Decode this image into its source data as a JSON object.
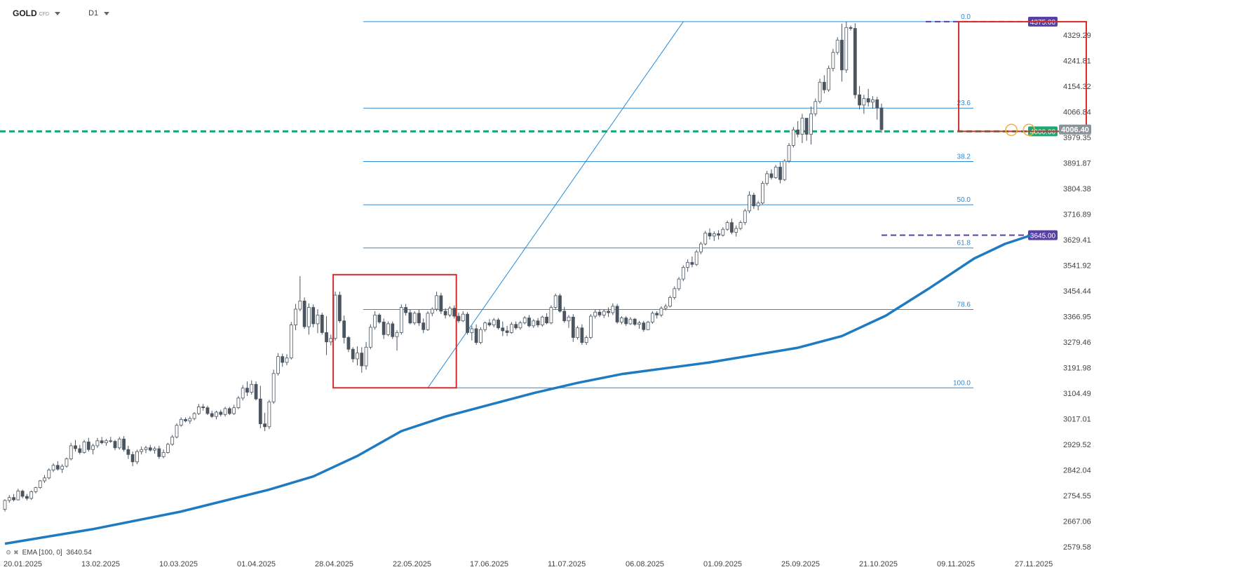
{
  "toolbar": {
    "symbol": "GOLD",
    "symbol_type": "CFD",
    "timeframe": "D1"
  },
  "indicator": {
    "name": "EMA",
    "params": "[100, 0]",
    "value": "3640.54"
  },
  "colors": {
    "up_candle": "#ffffff",
    "down_candle": "#4a5560",
    "wick": "#4a5560",
    "ema": "#1f7bc1",
    "fib": "#2a8bd6",
    "box": "#d62b2b",
    "support": "#1aa872",
    "target": "#5a3ea8",
    "price_tag": "#8a929a",
    "circle": "#f2b23a"
  },
  "chart_data": {
    "type": "candlestick",
    "title": "GOLD",
    "ylim": [
      2579.58,
      4375
    ],
    "x_tick_labels": [
      "20.01.2025",
      "13.02.2025",
      "10.03.2025",
      "01.04.2025",
      "28.04.2025",
      "22.05.2025",
      "17.06.2025",
      "11.07.2025",
      "06.08.2025",
      "01.09.2025",
      "25.09.2025",
      "21.10.2025",
      "09.11.2025",
      "27.11.2025"
    ],
    "y_tick_labels": [
      "4329.29",
      "4241.81",
      "4154.32",
      "4066.84",
      "3979.35",
      "3891.87",
      "3804.38",
      "3716.89",
      "3629.41",
      "3541.92",
      "3454.44",
      "3366.95",
      "3279.46",
      "3191.98",
      "3104.49",
      "3017.01",
      "2929.52",
      "2842.04",
      "2754.55",
      "2667.06",
      "2579.58"
    ],
    "current_price": "4006.40",
    "horizontal_levels": [
      {
        "label": "4375.00",
        "value": 4375.0
      },
      {
        "label": "4000.00",
        "value": 4000.0
      },
      {
        "label": "3645.00",
        "value": 3645.0
      }
    ],
    "fibonacci": {
      "high": 4375.0,
      "low": 3123.0,
      "levels": [
        {
          "label": "0.0",
          "ratio": 0.0
        },
        {
          "label": "23.6",
          "ratio": 0.236
        },
        {
          "label": "38.2",
          "ratio": 0.382
        },
        {
          "label": "50.0",
          "ratio": 0.5
        },
        {
          "label": "61.8",
          "ratio": 0.618
        },
        {
          "label": "78.6",
          "ratio": 0.786
        },
        {
          "label": "100.0",
          "ratio": 1.0
        }
      ]
    },
    "trend_line": {
      "from_bar": 96,
      "to_bar": 154,
      "from_price": 3123,
      "to_price": 4375
    },
    "highlight_boxes": [
      {
        "from_bar": 75,
        "to_bar": 102,
        "high": 3510,
        "low": 3123
      },
      {
        "from_bar": 217,
        "to_bar": 245,
        "high": 4375,
        "low": 4000
      }
    ],
    "marker_circles": [
      {
        "bar": 228,
        "price": 4005
      },
      {
        "bar": 232,
        "price": 4005
      }
    ],
    "ema_series": {
      "name": "EMA",
      "points": [
        [
          0,
          2590
        ],
        [
          20,
          2640
        ],
        [
          40,
          2700
        ],
        [
          60,
          2775
        ],
        [
          70,
          2820
        ],
        [
          80,
          2890
        ],
        [
          90,
          2975
        ],
        [
          100,
          3025
        ],
        [
          110,
          3065
        ],
        [
          120,
          3105
        ],
        [
          130,
          3140
        ],
        [
          140,
          3170
        ],
        [
          150,
          3190
        ],
        [
          160,
          3210
        ],
        [
          170,
          3235
        ],
        [
          180,
          3260
        ],
        [
          190,
          3300
        ],
        [
          200,
          3370
        ],
        [
          210,
          3465
        ],
        [
          220,
          3565
        ],
        [
          227,
          3615
        ],
        [
          233,
          3645
        ]
      ]
    },
    "candles": [
      [
        2708,
        2742,
        2700,
        2738
      ],
      [
        2738,
        2756,
        2730,
        2748
      ],
      [
        2748,
        2760,
        2735,
        2740
      ],
      [
        2740,
        2778,
        2738,
        2770
      ],
      [
        2770,
        2775,
        2745,
        2752
      ],
      [
        2752,
        2760,
        2738,
        2745
      ],
      [
        2745,
        2772,
        2740,
        2768
      ],
      [
        2768,
        2785,
        2762,
        2782
      ],
      [
        2782,
        2808,
        2778,
        2805
      ],
      [
        2805,
        2825,
        2798,
        2815
      ],
      [
        2815,
        2848,
        2810,
        2842
      ],
      [
        2842,
        2865,
        2835,
        2858
      ],
      [
        2858,
        2872,
        2840,
        2845
      ],
      [
        2845,
        2862,
        2832,
        2855
      ],
      [
        2855,
        2885,
        2850,
        2880
      ],
      [
        2880,
        2935,
        2875,
        2925
      ],
      [
        2925,
        2945,
        2905,
        2915
      ],
      [
        2915,
        2928,
        2895,
        2902
      ],
      [
        2902,
        2945,
        2898,
        2938
      ],
      [
        2938,
        2952,
        2905,
        2912
      ],
      [
        2912,
        2932,
        2895,
        2925
      ],
      [
        2925,
        2952,
        2918,
        2942
      ],
      [
        2942,
        2955,
        2930,
        2935
      ],
      [
        2935,
        2948,
        2925,
        2942
      ],
      [
        2942,
        2955,
        2935,
        2940
      ],
      [
        2940,
        2945,
        2910,
        2918
      ],
      [
        2918,
        2955,
        2912,
        2948
      ],
      [
        2948,
        2958,
        2905,
        2912
      ],
      [
        2912,
        2925,
        2880,
        2895
      ],
      [
        2895,
        2905,
        2855,
        2870
      ],
      [
        2870,
        2912,
        2862,
        2905
      ],
      [
        2905,
        2922,
        2895,
        2912
      ],
      [
        2912,
        2925,
        2900,
        2918
      ],
      [
        2918,
        2928,
        2905,
        2910
      ],
      [
        2910,
        2922,
        2898,
        2915
      ],
      [
        2915,
        2925,
        2880,
        2888
      ],
      [
        2888,
        2912,
        2882,
        2902
      ],
      [
        2902,
        2935,
        2898,
        2930
      ],
      [
        2930,
        2962,
        2925,
        2955
      ],
      [
        2955,
        3002,
        2950,
        2995
      ],
      [
        2995,
        3022,
        2990,
        3015
      ],
      [
        3015,
        3022,
        3005,
        3010
      ],
      [
        3010,
        3025,
        3000,
        3018
      ],
      [
        3018,
        3040,
        3012,
        3035
      ],
      [
        3035,
        3068,
        3030,
        3058
      ],
      [
        3058,
        3068,
        3045,
        3055
      ],
      [
        3055,
        3062,
        3030,
        3035
      ],
      [
        3035,
        3045,
        3020,
        3025
      ],
      [
        3025,
        3045,
        3015,
        3040
      ],
      [
        3040,
        3048,
        3025,
        3032
      ],
      [
        3032,
        3058,
        3025,
        3052
      ],
      [
        3052,
        3058,
        3030,
        3035
      ],
      [
        3035,
        3065,
        3030,
        3055
      ],
      [
        3055,
        3095,
        3050,
        3088
      ],
      [
        3088,
        3132,
        3080,
        3122
      ],
      [
        3122,
        3145,
        3095,
        3108
      ],
      [
        3108,
        3148,
        3100,
        3135
      ],
      [
        3135,
        3145,
        3080,
        3085
      ],
      [
        3085,
        3130,
        2985,
        3000
      ],
      [
        3000,
        3038,
        2975,
        2990
      ],
      [
        2990,
        3082,
        2982,
        3075
      ],
      [
        3075,
        3185,
        3068,
        3172
      ],
      [
        3172,
        3242,
        3165,
        3230
      ],
      [
        3230,
        3240,
        3195,
        3210
      ],
      [
        3210,
        3238,
        3200,
        3225
      ],
      [
        3225,
        3348,
        3220,
        3338
      ],
      [
        3338,
        3410,
        3320,
        3392
      ],
      [
        3392,
        3505,
        3385,
        3420
      ],
      [
        3420,
        3432,
        3325,
        3332
      ],
      [
        3332,
        3412,
        3305,
        3398
      ],
      [
        3398,
        3408,
        3330,
        3342
      ],
      [
        3342,
        3392,
        3310,
        3372
      ],
      [
        3372,
        3380,
        3305,
        3312
      ],
      [
        3312,
        3368,
        3235,
        3280
      ],
      [
        3280,
        3305,
        3268,
        3292
      ],
      [
        3292,
        3452,
        3285,
        3440
      ],
      [
        3440,
        3452,
        3345,
        3352
      ],
      [
        3352,
        3370,
        3275,
        3295
      ],
      [
        3295,
        3300,
        3245,
        3255
      ],
      [
        3255,
        3262,
        3210,
        3222
      ],
      [
        3222,
        3265,
        3200,
        3242
      ],
      [
        3242,
        3262,
        3175,
        3198
      ],
      [
        3198,
        3280,
        3185,
        3262
      ],
      [
        3262,
        3340,
        3255,
        3330
      ],
      [
        3330,
        3385,
        3322,
        3372
      ],
      [
        3372,
        3378,
        3342,
        3348
      ],
      [
        3348,
        3360,
        3290,
        3305
      ],
      [
        3305,
        3350,
        3300,
        3342
      ],
      [
        3342,
        3350,
        3290,
        3298
      ],
      [
        3298,
        3320,
        3250,
        3312
      ],
      [
        3312,
        3408,
        3305,
        3398
      ],
      [
        3398,
        3410,
        3370,
        3380
      ],
      [
        3380,
        3390,
        3340,
        3345
      ],
      [
        3345,
        3385,
        3338,
        3378
      ],
      [
        3378,
        3390,
        3335,
        3345
      ],
      [
        3345,
        3360,
        3310,
        3322
      ],
      [
        3322,
        3385,
        3318,
        3378
      ],
      [
        3378,
        3398,
        3368,
        3392
      ],
      [
        3392,
        3452,
        3385,
        3438
      ],
      [
        3438,
        3448,
        3375,
        3385
      ],
      [
        3385,
        3395,
        3360,
        3372
      ],
      [
        3372,
        3402,
        3365,
        3395
      ],
      [
        3395,
        3405,
        3360,
        3368
      ],
      [
        3368,
        3380,
        3345,
        3352
      ],
      [
        3352,
        3385,
        3348,
        3375
      ],
      [
        3375,
        3382,
        3305,
        3312
      ],
      [
        3312,
        3335,
        3285,
        3325
      ],
      [
        3325,
        3340,
        3270,
        3278
      ],
      [
        3278,
        3330,
        3272,
        3322
      ],
      [
        3322,
        3350,
        3315,
        3345
      ],
      [
        3345,
        3358,
        3332,
        3338
      ],
      [
        3338,
        3362,
        3330,
        3355
      ],
      [
        3355,
        3362,
        3322,
        3328
      ],
      [
        3328,
        3350,
        3300,
        3318
      ],
      [
        3318,
        3335,
        3300,
        3312
      ],
      [
        3312,
        3348,
        3308,
        3340
      ],
      [
        3340,
        3350,
        3322,
        3328
      ],
      [
        3328,
        3352,
        3322,
        3345
      ],
      [
        3345,
        3368,
        3340,
        3362
      ],
      [
        3362,
        3372,
        3330,
        3335
      ],
      [
        3335,
        3358,
        3328,
        3352
      ],
      [
        3352,
        3362,
        3330,
        3338
      ],
      [
        3338,
        3370,
        3332,
        3365
      ],
      [
        3365,
        3378,
        3340,
        3345
      ],
      [
        3345,
        3405,
        3340,
        3398
      ],
      [
        3398,
        3445,
        3390,
        3438
      ],
      [
        3438,
        3445,
        3380,
        3385
      ],
      [
        3385,
        3400,
        3345,
        3352
      ],
      [
        3352,
        3372,
        3328,
        3365
      ],
      [
        3365,
        3375,
        3280,
        3295
      ],
      [
        3295,
        3335,
        3288,
        3328
      ],
      [
        3328,
        3340,
        3270,
        3278
      ],
      [
        3278,
        3302,
        3270,
        3295
      ],
      [
        3295,
        3375,
        3290,
        3368
      ],
      [
        3368,
        3390,
        3360,
        3382
      ],
      [
        3382,
        3392,
        3365,
        3372
      ],
      [
        3372,
        3392,
        3362,
        3385
      ],
      [
        3385,
        3398,
        3365,
        3380
      ],
      [
        3380,
        3412,
        3372,
        3402
      ],
      [
        3402,
        3410,
        3342,
        3348
      ],
      [
        3348,
        3368,
        3340,
        3362
      ],
      [
        3362,
        3368,
        3335,
        3342
      ],
      [
        3342,
        3365,
        3338,
        3358
      ],
      [
        3358,
        3362,
        3335,
        3340
      ],
      [
        3340,
        3352,
        3325,
        3345
      ],
      [
        3345,
        3352,
        3315,
        3322
      ],
      [
        3322,
        3352,
        3320,
        3348
      ],
      [
        3348,
        3385,
        3342,
        3378
      ],
      [
        3378,
        3385,
        3360,
        3372
      ],
      [
        3372,
        3402,
        3365,
        3395
      ],
      [
        3395,
        3410,
        3388,
        3402
      ],
      [
        3402,
        3438,
        3398,
        3432
      ],
      [
        3432,
        3470,
        3425,
        3462
      ],
      [
        3462,
        3502,
        3455,
        3495
      ],
      [
        3495,
        3542,
        3488,
        3535
      ],
      [
        3535,
        3562,
        3520,
        3552
      ],
      [
        3552,
        3572,
        3535,
        3545
      ],
      [
        3545,
        3595,
        3540,
        3588
      ],
      [
        3588,
        3622,
        3580,
        3615
      ],
      [
        3615,
        3660,
        3610,
        3652
      ],
      [
        3652,
        3668,
        3630,
        3642
      ],
      [
        3642,
        3658,
        3625,
        3650
      ],
      [
        3650,
        3662,
        3630,
        3645
      ],
      [
        3645,
        3672,
        3640,
        3665
      ],
      [
        3665,
        3695,
        3660,
        3688
      ],
      [
        3688,
        3702,
        3648,
        3655
      ],
      [
        3655,
        3678,
        3640,
        3668
      ],
      [
        3668,
        3695,
        3662,
        3688
      ],
      [
        3688,
        3735,
        3680,
        3728
      ],
      [
        3728,
        3795,
        3720,
        3782
      ],
      [
        3782,
        3790,
        3735,
        3745
      ],
      [
        3745,
        3762,
        3730,
        3755
      ],
      [
        3755,
        3830,
        3750,
        3822
      ],
      [
        3822,
        3865,
        3815,
        3855
      ],
      [
        3855,
        3870,
        3835,
        3842
      ],
      [
        3842,
        3885,
        3838,
        3878
      ],
      [
        3878,
        3895,
        3822,
        3835
      ],
      [
        3835,
        3905,
        3830,
        3898
      ],
      [
        3898,
        3960,
        3892,
        3952
      ],
      [
        3952,
        4015,
        3945,
        4005
      ],
      [
        4005,
        4035,
        3980,
        3990
      ],
      [
        3990,
        4060,
        3960,
        4045
      ],
      [
        4045,
        4030,
        3968,
        3990
      ],
      [
        3990,
        4085,
        3955,
        4060
      ],
      [
        4060,
        4112,
        4052,
        4102
      ],
      [
        4102,
        4180,
        4095,
        4168
      ],
      [
        4168,
        4192,
        4130,
        4142
      ],
      [
        4142,
        4225,
        4135,
        4215
      ],
      [
        4215,
        4282,
        4205,
        4270
      ],
      [
        4270,
        4322,
        4262,
        4312
      ],
      [
        4312,
        4368,
        4170,
        4210
      ],
      [
        4210,
        4375,
        4200,
        4355
      ],
      [
        4355,
        4362,
        4345,
        4352
      ],
      [
        4352,
        4370,
        4112,
        4125
      ],
      [
        4125,
        4155,
        4075,
        4090
      ],
      [
        4090,
        4125,
        4060,
        4112
      ],
      [
        4112,
        4145,
        4085,
        4100
      ],
      [
        4100,
        4120,
        4078,
        4108
      ],
      [
        4108,
        4118,
        4040,
        4080
      ],
      [
        4080,
        4095,
        3995,
        4006
      ]
    ]
  }
}
